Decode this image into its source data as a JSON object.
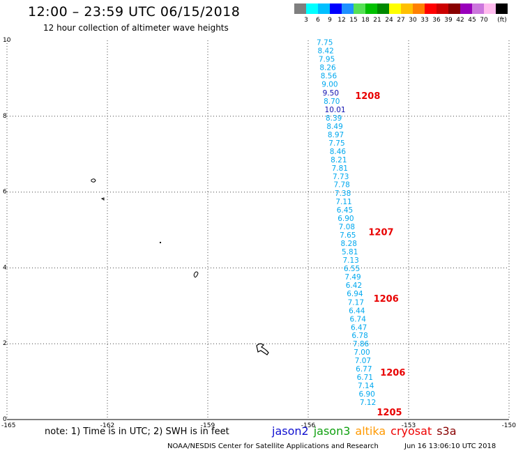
{
  "title": "12:00 – 23:59 UTC 06/15/2018",
  "subtitle": "12 hour collection of altimeter wave heights",
  "colorbar": {
    "colors": [
      "#7f7f7f",
      "#00ffff",
      "#00bfff",
      "#0000ff",
      "#1e90ff",
      "#55e055",
      "#00c000",
      "#008800",
      "#ffff00",
      "#ffc000",
      "#ff8000",
      "#ff0000",
      "#cc0000",
      "#880000",
      "#9900bb",
      "#cc77dd",
      "#ffbbee",
      "#000000"
    ],
    "labels": [
      "3",
      "6",
      "9",
      "12",
      "15",
      "18",
      "21",
      "24",
      "27",
      "30",
      "33",
      "36",
      "39",
      "42",
      "45",
      "70"
    ],
    "unit": "(ft)"
  },
  "axes": {
    "y_ticks": [
      "10",
      "8",
      "6",
      "4",
      "2",
      "0"
    ],
    "x_ticks": [
      "-165",
      "-162",
      "-159",
      "-156",
      "-153",
      "-150"
    ]
  },
  "observations": [
    {
      "lon": -155.75,
      "lat": 9.95,
      "label": "7.75"
    },
    {
      "lon": -155.72,
      "lat": 9.73,
      "label": "8.42"
    },
    {
      "lon": -155.69,
      "lat": 9.51,
      "label": "7.95"
    },
    {
      "lon": -155.66,
      "lat": 9.29,
      "label": "8.26"
    },
    {
      "lon": -155.63,
      "lat": 9.07,
      "label": "8.56"
    },
    {
      "lon": -155.6,
      "lat": 8.85,
      "label": "9.00"
    },
    {
      "lon": -155.57,
      "lat": 8.62,
      "label": "9.50",
      "dark": true
    },
    {
      "lon": -155.54,
      "lat": 8.4,
      "label": "8.70"
    },
    {
      "lon": -155.51,
      "lat": 8.18,
      "label": "10.01",
      "dark": true
    },
    {
      "lon": -155.48,
      "lat": 7.96,
      "label": "8.39"
    },
    {
      "lon": -155.45,
      "lat": 7.74,
      "label": "8.49"
    },
    {
      "lon": -155.42,
      "lat": 7.52,
      "label": "8.97"
    },
    {
      "lon": -155.39,
      "lat": 7.3,
      "label": "7.75"
    },
    {
      "lon": -155.36,
      "lat": 7.08,
      "label": "8.46"
    },
    {
      "lon": -155.33,
      "lat": 6.86,
      "label": "8.21"
    },
    {
      "lon": -155.3,
      "lat": 6.64,
      "label": "7.81"
    },
    {
      "lon": -155.27,
      "lat": 6.42,
      "label": "7.73"
    },
    {
      "lon": -155.24,
      "lat": 6.2,
      "label": "7.78"
    },
    {
      "lon": -155.21,
      "lat": 5.97,
      "label": "7.38"
    },
    {
      "lon": -155.18,
      "lat": 5.75,
      "label": "7.11"
    },
    {
      "lon": -155.15,
      "lat": 5.53,
      "label": "6.45"
    },
    {
      "lon": -155.12,
      "lat": 5.31,
      "label": "6.90"
    },
    {
      "lon": -155.09,
      "lat": 5.09,
      "label": "7.08"
    },
    {
      "lon": -155.06,
      "lat": 4.87,
      "label": "7.65"
    },
    {
      "lon": -155.03,
      "lat": 4.65,
      "label": "8.28"
    },
    {
      "lon": -155.0,
      "lat": 4.43,
      "label": "5.81"
    },
    {
      "lon": -154.97,
      "lat": 4.21,
      "label": "7.13"
    },
    {
      "lon": -154.94,
      "lat": 3.99,
      "label": "6.55"
    },
    {
      "lon": -154.91,
      "lat": 3.77,
      "label": "7.49"
    },
    {
      "lon": -154.88,
      "lat": 3.55,
      "label": "6.42"
    },
    {
      "lon": -154.85,
      "lat": 3.33,
      "label": "6.94"
    },
    {
      "lon": -154.82,
      "lat": 3.1,
      "label": "7.17"
    },
    {
      "lon": -154.79,
      "lat": 2.88,
      "label": "6.44"
    },
    {
      "lon": -154.76,
      "lat": 2.66,
      "label": "6.74"
    },
    {
      "lon": -154.73,
      "lat": 2.44,
      "label": "6.47"
    },
    {
      "lon": -154.7,
      "lat": 2.22,
      "label": "6.78"
    },
    {
      "lon": -154.67,
      "lat": 2.0,
      "label": "7.86"
    },
    {
      "lon": -154.64,
      "lat": 1.78,
      "label": "7.00"
    },
    {
      "lon": -154.61,
      "lat": 1.56,
      "label": "7.07"
    },
    {
      "lon": -154.58,
      "lat": 1.34,
      "label": "6.77"
    },
    {
      "lon": -154.55,
      "lat": 1.12,
      "label": "6.71"
    },
    {
      "lon": -154.52,
      "lat": 0.9,
      "label": "7.14"
    },
    {
      "lon": -154.49,
      "lat": 0.68,
      "label": "6.90"
    },
    {
      "lon": -154.46,
      "lat": 0.46,
      "label": "7.12"
    }
  ],
  "track_labels": [
    {
      "lon": -154.6,
      "lat": 8.55,
      "label": "1208"
    },
    {
      "lon": -154.2,
      "lat": 4.95,
      "label": "1207"
    },
    {
      "lon": -154.05,
      "lat": 3.2,
      "label": "1206"
    },
    {
      "lon": -153.85,
      "lat": 1.25,
      "label": "1206"
    },
    {
      "lon": -153.95,
      "lat": 0.2,
      "label": "1205"
    }
  ],
  "note": "note: 1) Time is in UTC; 2) SWH is in feet",
  "satellites": [
    {
      "name": "jason2",
      "color": "#1010d0"
    },
    {
      "name": "jason3",
      "color": "#10a010"
    },
    {
      "name": "altika",
      "color": "#ff9900"
    },
    {
      "name": "cryosat",
      "color": "#ee0000"
    },
    {
      "name": "s3a",
      "color": "#880000"
    }
  ],
  "footer_left": "NOAA/NESDIS Center for Satellite Applications and Research",
  "footer_right": "Jun 16 13:06:10 UTC 2018"
}
